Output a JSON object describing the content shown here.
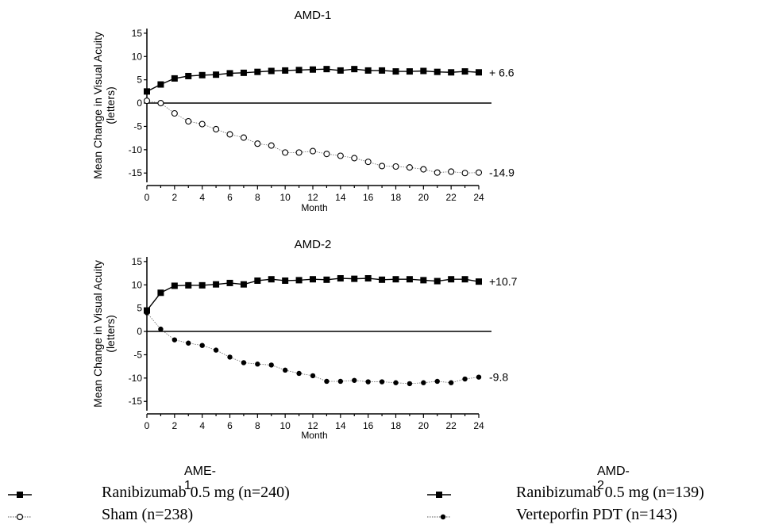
{
  "chart_data": [
    {
      "type": "line",
      "title": "AMD-1",
      "xlabel": "Month",
      "ylabel": "Mean Change in Visual Acuity (letters)",
      "ylabel_lines": [
        "Mean Change in Visual Acuity",
        "(letters)"
      ],
      "xlim": [
        0,
        24
      ],
      "ylim": [
        -17,
        16
      ],
      "xticks": [
        "0",
        "2",
        "4",
        "6",
        "8",
        "10",
        "12",
        "14",
        "16",
        "18",
        "20",
        "22",
        "24"
      ],
      "yticks": [
        "15",
        "10",
        "5",
        "0",
        "-5",
        "-10",
        "-15"
      ],
      "zero_line": true,
      "series": [
        {
          "marker": "filled-square",
          "x": [
            0,
            1,
            2,
            3,
            4,
            5,
            6,
            7,
            8,
            9,
            10,
            11,
            12,
            13,
            14,
            15,
            16,
            17,
            18,
            19,
            20,
            21,
            22,
            23,
            24
          ],
          "values": [
            2.5,
            4.0,
            5.3,
            5.8,
            6.0,
            6.1,
            6.4,
            6.5,
            6.7,
            6.9,
            7.0,
            7.1,
            7.2,
            7.3,
            7.0,
            7.3,
            7.0,
            7.0,
            6.8,
            6.8,
            6.9,
            6.7,
            6.6,
            6.8,
            6.6
          ],
          "end_label": "+ 6.6"
        },
        {
          "marker": "open-circle",
          "x": [
            0,
            1,
            2,
            3,
            4,
            5,
            6,
            7,
            8,
            9,
            10,
            11,
            12,
            13,
            14,
            15,
            16,
            17,
            18,
            19,
            20,
            21,
            22,
            23,
            24
          ],
          "values": [
            0.5,
            0.0,
            -2.2,
            -3.9,
            -4.5,
            -5.6,
            -6.7,
            -7.4,
            -8.7,
            -9.1,
            -10.6,
            -10.6,
            -10.3,
            -10.9,
            -11.3,
            -11.8,
            -12.6,
            -13.5,
            -13.6,
            -13.8,
            -14.2,
            -14.9,
            -14.7,
            -15.0,
            -14.9
          ],
          "end_label": "-14.9"
        }
      ]
    },
    {
      "type": "line",
      "title": "AMD-2",
      "xlabel": "Month",
      "ylabel": "Mean Change in Visual Acuity (letters)",
      "ylabel_lines": [
        "Mean Change in Visual Acuity",
        "(letters)"
      ],
      "xlim": [
        0,
        24
      ],
      "ylim": [
        -17,
        16
      ],
      "xticks": [
        "0",
        "2",
        "4",
        "6",
        "8",
        "10",
        "12",
        "14",
        "16",
        "18",
        "20",
        "22",
        "24"
      ],
      "yticks": [
        "15",
        "10",
        "5",
        "0",
        "-5",
        "-10",
        "-15"
      ],
      "zero_line": true,
      "series": [
        {
          "marker": "filled-square",
          "x": [
            0,
            1,
            2,
            3,
            4,
            5,
            6,
            7,
            8,
            9,
            10,
            11,
            12,
            13,
            14,
            15,
            16,
            17,
            18,
            19,
            20,
            21,
            22,
            23,
            24
          ],
          "values": [
            4.5,
            8.3,
            9.8,
            9.9,
            9.9,
            10.1,
            10.4,
            10.1,
            10.9,
            11.2,
            10.9,
            11.0,
            11.2,
            11.1,
            11.4,
            11.3,
            11.4,
            11.1,
            11.2,
            11.2,
            11.0,
            10.8,
            11.2,
            11.2,
            10.7
          ],
          "end_label": "+10.7"
        },
        {
          "marker": "filled-circle",
          "x": [
            0,
            1,
            2,
            3,
            4,
            5,
            6,
            7,
            8,
            9,
            10,
            11,
            12,
            13,
            14,
            15,
            16,
            17,
            18,
            19,
            20,
            21,
            22,
            23,
            24
          ],
          "values": [
            4.0,
            0.5,
            -1.8,
            -2.5,
            -3.0,
            -4.0,
            -5.5,
            -6.7,
            -7.0,
            -7.2,
            -8.3,
            -9.0,
            -9.5,
            -10.7,
            -10.7,
            -10.5,
            -10.8,
            -10.8,
            -11.0,
            -11.2,
            -11.0,
            -10.7,
            -11.0,
            -10.2,
            -9.8
          ],
          "end_label": "-9.8"
        }
      ]
    }
  ],
  "legend": {
    "left": {
      "title": "AME-1",
      "items": [
        {
          "label": "Ranibizumab 0.5 mg (n=240)",
          "marker": "filled-square"
        },
        {
          "label": "Sham (n=238)",
          "marker": "open-circle"
        }
      ]
    },
    "right": {
      "title": "AMD-2",
      "items": [
        {
          "label": "Ranibizumab 0.5 mg (n=139)",
          "marker": "filled-square"
        },
        {
          "label": "Verteporfin PDT (n=143)",
          "marker": "filled-circle"
        }
      ]
    }
  }
}
